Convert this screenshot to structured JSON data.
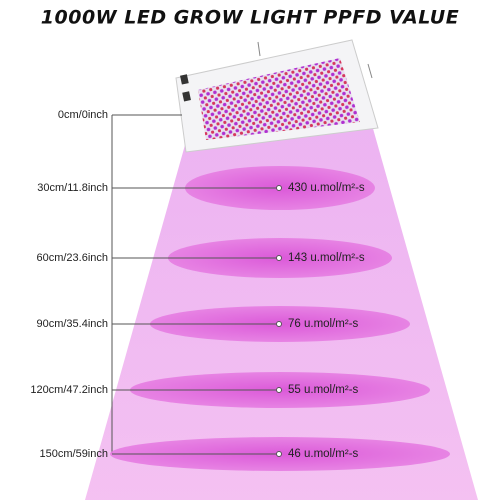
{
  "title": "1000W LED GROW LIGHT PPFD VALUE",
  "levels": [
    {
      "distance": "0cm/0inch"
    },
    {
      "distance": "30cm/11.8inch",
      "ppfd": "430 u.mol/m²-s"
    },
    {
      "distance": "60cm/23.6inch",
      "ppfd": "143 u.mol/m²-s"
    },
    {
      "distance": "90cm/35.4inch",
      "ppfd": "76 u.mol/m²-s"
    },
    {
      "distance": "120cm/47.2inch",
      "ppfd": "55 u.mol/m²-s"
    },
    {
      "distance": "150cm/59inch",
      "ppfd": "46 u.mol/m²-s"
    }
  ]
}
